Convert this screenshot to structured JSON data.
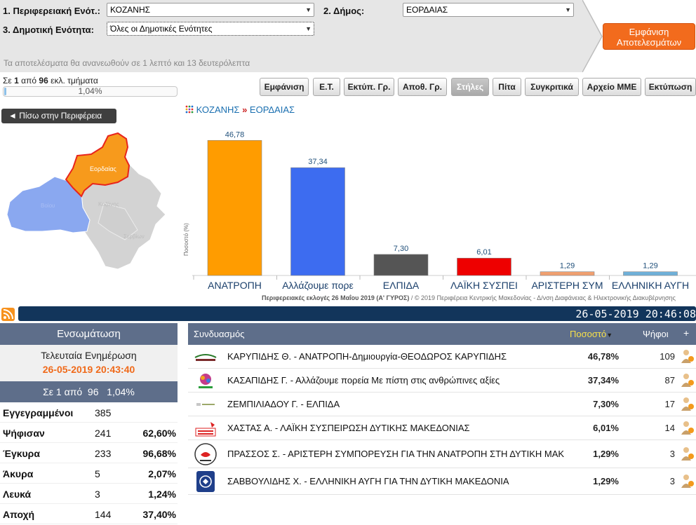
{
  "filters": {
    "label1": "1. Περιφερειακή Ενότ.:",
    "select1": "ΚΟΖΑΝΗΣ",
    "label2": "2. Δήμος:",
    "select2": "ΕΟΡΔΑΙΑΣ",
    "label3": "3. Δημοτική Ενότητα:",
    "select3": "Όλες οι Δημοτικές Ενότητες",
    "show_button": "Εμφάνιση Αποτελεσμάτων",
    "refresh_text": "Τα αποτελέσματα θα ανανεωθούν σε 1 λεπτό και 13 δευτερόλεπτα"
  },
  "progress": {
    "prefix": "Σε",
    "counted": "1",
    "middle": "από",
    "total": "96",
    "suffix": "εκλ. τμήματα",
    "percent_label": "1,04%",
    "fraction": 0.0104
  },
  "toolbar": [
    {
      "label": "Εμφάνιση",
      "active": false
    },
    {
      "label": "Ε.Τ.",
      "active": false
    },
    {
      "label": "Εκτύπ. Γρ.",
      "active": false
    },
    {
      "label": "Αποθ. Γρ.",
      "active": false
    },
    {
      "label": "Στήλες",
      "active": true
    },
    {
      "label": "Πίτα",
      "active": false
    },
    {
      "label": "Συγκριτικά",
      "active": false
    },
    {
      "label": "Αρχείο ΜΜΕ",
      "active": false
    },
    {
      "label": "Εκτύπωση",
      "active": false
    }
  ],
  "back_button": "◄ Πίσω στην Περιφέρεια",
  "map": {
    "highlighted": "Εορδαίας",
    "regions": [
      "Βοίου",
      "Κοζάνης",
      "Σερβίων"
    ],
    "colors": {
      "highlight": "#f79a1c",
      "highlight_border": "#e8241c",
      "blue": "#8aa8f0",
      "gray": "#d6d6d6"
    }
  },
  "breadcrumb": {
    "part1": "ΚΟΖΑΝΗΣ",
    "sep": "»",
    "part2": "ΕΟΡΔΑΙΑΣ"
  },
  "chart_data": {
    "type": "bar",
    "categories": [
      "ΑΝΑΤΡΟΠΗ",
      "Αλλάζουμε πορε",
      "ΕΛΠΙΔΑ",
      "ΛΑΪΚΗ ΣΥΣΠΕΙ",
      "ΑΡΙΣΤΕΡΗ ΣΥΜ",
      "ΕΛΛΗΝΙΚΗ ΑΥΓΗ"
    ],
    "values": [
      46.78,
      37.34,
      7.3,
      6.01,
      1.29,
      1.29
    ],
    "value_labels": [
      "46,78",
      "37,34",
      "7,30",
      "6,01",
      "1,29",
      "1,29"
    ],
    "colors": [
      "#ff9c00",
      "#3d6cf0",
      "#555555",
      "#ee0000",
      "#f0a070",
      "#6fb0d8"
    ],
    "ylabel": "Ποσοστό (%)",
    "ylim": [
      0,
      50
    ]
  },
  "credit": {
    "bold": "Περιφερειακές εκλογές 26 Μαΐου 2019 (Α' ΓΥΡΟΣ)",
    "rest": " / © 2019 Περιφέρεια Κεντρικής Μακεδονίας - Δ/νση Διαφάνειας & Ηλεκτρονικής Διακυβέρνησης"
  },
  "datebar": "26-05-2019 20:46:08",
  "left": {
    "heading": "Ενσωμάτωση",
    "last_update_title": "Τελευταία Ενημέρωση",
    "last_update_time": "26-05-2019 20:43:40",
    "progress_line": "Σε 1 από  96   1,04%",
    "stats": [
      {
        "label": "Εγγεγραμμένοι",
        "value": "385",
        "pct": ""
      },
      {
        "label": "Ψήφισαν",
        "value": "241",
        "pct": "62,60%"
      },
      {
        "label": "Έγκυρα",
        "value": "233",
        "pct": "96,68%"
      },
      {
        "label": "Άκυρα",
        "value": "5",
        "pct": "2,07%"
      },
      {
        "label": "Λευκά",
        "value": "3",
        "pct": "1,24%"
      },
      {
        "label": "Αποχή",
        "value": "144",
        "pct": "37,40%"
      }
    ]
  },
  "results": {
    "headers": {
      "party": "Συνδυασμός",
      "pct": "Ποσοστό",
      "votes": "Ψήφοι",
      "more": "+"
    },
    "rows": [
      {
        "name": "ΚΑΡΥΠΙΔΗΣ Θ. - ΑΝΑΤΡΟΠΗ-Δημιουργία-ΘΕΟΔΩΡΟΣ ΚΑΡΥΠΙΔΗΣ",
        "pct": "46,78%",
        "votes": "109",
        "logo": "anatropi-logo"
      },
      {
        "name": "ΚΑΣΑΠΙΔΗΣ Γ. - Αλλάζουμε πορεία Με πίστη στις ανθρώπινες αξίες",
        "pct": "37,34%",
        "votes": "87",
        "logo": "allazoume-logo"
      },
      {
        "name": "ΖΕΜΠΙΛΙΑΔΟΥ Γ. - ΕΛΠΙΔΑ",
        "pct": "7,30%",
        "votes": "17",
        "logo": "elpida-logo"
      },
      {
        "name": "ΧΑΣΤΑΣ Α. - ΛΑΪΚΗ ΣΥΣΠΕΙΡΩΣΗ ΔΥΤΙΚΗΣ ΜΑΚΕΔΟΝΙΑΣ",
        "pct": "6,01%",
        "votes": "14",
        "logo": "laiki-logo"
      },
      {
        "name": "ΠΡΑΣΣΟΣ Σ. - ΑΡΙΣΤΕΡΗ ΣΥΜΠΟΡΕΥΣΗ ΓΙΑ ΤΗΝ ΑΝΑΤΡΟΠΗ ΣΤΗ ΔΥΤΙΚΗ ΜΑΚΕΔΟΝΙΑ",
        "pct": "1,29%",
        "votes": "3",
        "logo": "aristeri-logo"
      },
      {
        "name": "ΣΑΒΒΟΥΛΙΔΗΣ Χ. - ΕΛΛΗΝΙΚΗ ΑΥΓΗ ΓΙΑ ΤΗΝ ΔΥΤΙΚΗ ΜΑΚΕΔΟΝΙΑ",
        "pct": "1,29%",
        "votes": "3",
        "logo": "avgi-logo"
      }
    ]
  }
}
